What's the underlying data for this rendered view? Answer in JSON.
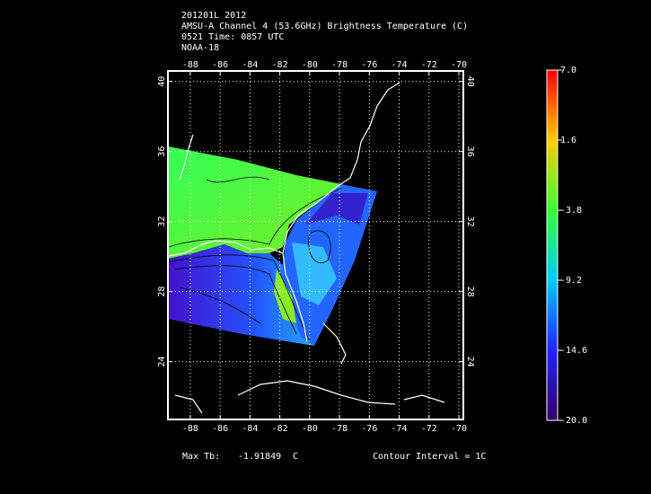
{
  "header": {
    "lines": [
      "201201L 2012",
      "AMSU-A Channel 4 (53.6GHz) Brightness Temperature (C)",
      "0521 Time: 0857 UTC",
      "NOAA-18"
    ]
  },
  "map": {
    "lon_range": [
      -89.5,
      -69.7
    ],
    "lat_range": [
      20.7,
      40.6
    ],
    "lon_ticks": [
      -88,
      -86,
      -84,
      -82,
      -80,
      -78,
      -76,
      -74,
      -72,
      -70
    ],
    "lat_ticks": [
      24,
      28,
      32,
      36,
      40
    ],
    "grid": true
  },
  "colorbar": {
    "range": [
      -20,
      7
    ],
    "ticks": [
      {
        "value": 7,
        "label": "7.0"
      },
      {
        "value": 1.6,
        "label": "1.6"
      },
      {
        "value": -3.8,
        "label": "-3.8"
      },
      {
        "value": -9.2,
        "label": "-9.2"
      },
      {
        "value": -14.6,
        "label": "-14.6"
      },
      {
        "value": -20,
        "label": "-20.0"
      }
    ]
  },
  "footer": {
    "max_label": "Max Tb:",
    "max_value": "-1.91849",
    "max_unit": "C",
    "contour": "Contour Interval = 1C"
  }
}
